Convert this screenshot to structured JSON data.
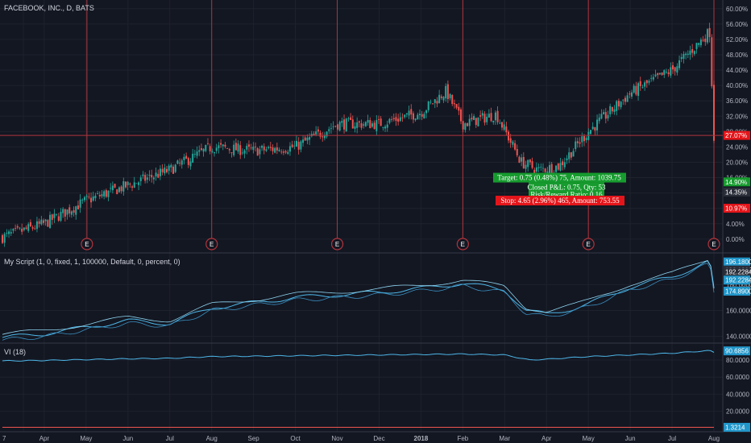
{
  "main_title": "FACEBOOK, INC., D, BATS",
  "indicator1_title": "My Script (1, 0, fixed, 1, 100000, Default, 0, percent, 0)",
  "indicator2_title": "VI (18)",
  "colors": {
    "background": "#131722",
    "grid": "#1e222d",
    "up_candle": "#26a69a",
    "down_candle": "#ef5350",
    "event_line": "#b0343c",
    "cursor_line": "#b0343c",
    "equity_line": "#4db6e8",
    "target_box": "#169b2e",
    "stop_box": "#e4151a",
    "axis_badge_cyan": "#2196c9"
  },
  "chart_data": [
    {
      "type": "candlestick",
      "title": "FACEBOOK, INC., D, BATS",
      "x_labels": [
        "7",
        "Apr",
        "May",
        "Jun",
        "Jul",
        "Aug",
        "Sep",
        "Oct",
        "Nov",
        "Dec",
        "2018",
        "Feb",
        "Mar",
        "Apr",
        "May",
        "Jun",
        "Jul",
        "Aug"
      ],
      "x_label_month_index": [
        0.5,
        1,
        2,
        3,
        4,
        5,
        6,
        7,
        8,
        9,
        10,
        11,
        12,
        13,
        14,
        15,
        16,
        17
      ],
      "y_axis": {
        "unit": "percent",
        "ticks": [
          "60.00%",
          "56.00%",
          "52.00%",
          "48.00%",
          "44.00%",
          "40.00%",
          "36.00%",
          "32.00%",
          "28.00%",
          "24.00%",
          "20.00%",
          "16.00%",
          "12.00%",
          "8.00%",
          "4.00%",
          "0.00%"
        ],
        "range": [
          -1.5,
          61
        ]
      },
      "series_percent_by_month": [
        [
          0.0,
          0.5
        ],
        [
          1.0,
          4.0
        ],
        [
          2.0,
          10.0
        ],
        [
          3.0,
          14.0
        ],
        [
          4.0,
          18.0
        ],
        [
          5.0,
          24.0
        ],
        [
          6.0,
          23.0
        ],
        [
          7.0,
          24.0
        ],
        [
          8.0,
          30.0
        ],
        [
          9.0,
          30.0
        ],
        [
          10.0,
          33.0
        ],
        [
          10.6,
          38.5
        ],
        [
          11.0,
          30.0
        ],
        [
          11.8,
          32.5
        ],
        [
          12.4,
          20.0
        ],
        [
          12.8,
          18.0
        ],
        [
          13.3,
          19.0
        ],
        [
          14.0,
          28.0
        ],
        [
          15.0,
          38.0
        ],
        [
          16.0,
          44.0
        ],
        [
          16.9,
          54.0
        ],
        [
          17.0,
          26.5
        ]
      ],
      "event_markers": {
        "label": "E",
        "month_index": [
          2,
          5,
          8,
          11,
          14,
          17
        ]
      },
      "crosshair_value_percent": 27.0,
      "crosshair_badge": "27.07%",
      "trade_annotations": {
        "target": "Target: 0.75 (0.48%) 75, Amount: 1039.75",
        "closed": "Closed P&L: 0.75, Qty: 53",
        "risk_reward": "Risk/Reward Ratio: 0.16",
        "stop": "Stop: 4.65 (2.96%) 465, Amount: 753.55",
        "target_badge": "14.90%",
        "mid_badge": "14.35%",
        "stop_badge": "10.97%"
      }
    },
    {
      "type": "line",
      "title": "My Script (1, 0, fixed, 1, 100000, Default, 0, percent, 0)",
      "y_axis": {
        "ticks": [
          "180.0000",
          "160.0000",
          "140.0000"
        ],
        "range": [
          136,
          202
        ]
      },
      "series_by_month": [
        [
          0.0,
          139
        ],
        [
          1.0,
          142
        ],
        [
          2.0,
          147
        ],
        [
          3.0,
          152
        ],
        [
          4.0,
          150
        ],
        [
          5.0,
          162
        ],
        [
          6.0,
          166
        ],
        [
          7.0,
          170
        ],
        [
          8.0,
          172
        ],
        [
          9.0,
          174
        ],
        [
          10.0,
          177
        ],
        [
          11.0,
          181
        ],
        [
          12.0,
          176
        ],
        [
          12.5,
          160
        ],
        [
          13.0,
          157
        ],
        [
          13.7,
          162
        ],
        [
          14.0,
          165
        ],
        [
          15.0,
          178
        ],
        [
          16.0,
          186
        ],
        [
          16.9,
          198
        ],
        [
          17.0,
          176
        ]
      ],
      "badges": [
        "196.1800",
        "196.1800",
        "192.2284",
        "192.2284",
        "174.8900"
      ]
    },
    {
      "type": "line",
      "title": "VI (18)",
      "y_axis": {
        "ticks": [
          "80.0000",
          "60.0000",
          "40.0000",
          "20.0000"
        ],
        "range": [
          -2,
          96
        ]
      },
      "series_by_month": [
        [
          0.0,
          79
        ],
        [
          1.0,
          79.5
        ],
        [
          2.0,
          80.5
        ],
        [
          3.0,
          81.5
        ],
        [
          4.0,
          82
        ],
        [
          5.0,
          84
        ],
        [
          6.0,
          84.5
        ],
        [
          7.0,
          85
        ],
        [
          8.0,
          85.5
        ],
        [
          9.0,
          86
        ],
        [
          10.0,
          86.5
        ],
        [
          11.0,
          87
        ],
        [
          12.0,
          86
        ],
        [
          12.6,
          80
        ],
        [
          13.0,
          81
        ],
        [
          14.0,
          84
        ],
        [
          15.0,
          86
        ],
        [
          16.0,
          88
        ],
        [
          16.9,
          91
        ],
        [
          17.0,
          89
        ]
      ],
      "flat_series_value": 1.3,
      "badges": [
        "90.6856",
        "1.3214"
      ]
    }
  ]
}
